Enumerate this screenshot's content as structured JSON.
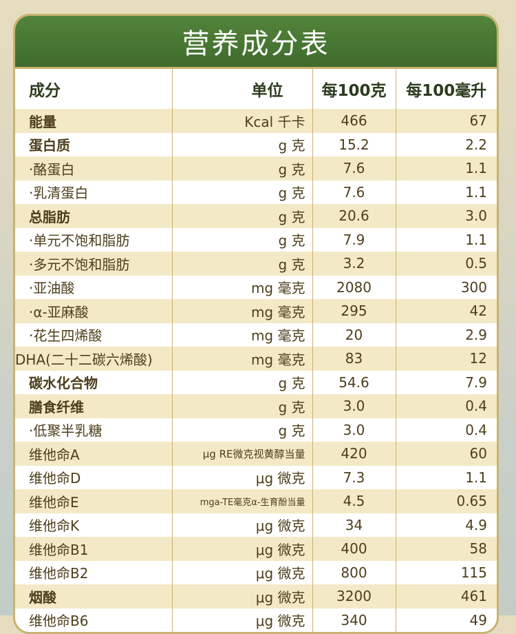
{
  "title": "营养成分表",
  "columns": [
    "成分",
    "单位",
    "每100克",
    "每100毫升"
  ],
  "rows": [
    {
      "name": "能量",
      "unit": "Kcal 千卡",
      "per100g": "466",
      "per100ml": "67"
    },
    {
      "name": "蛋白质",
      "unit": "g 克",
      "per100g": "15.2",
      "per100ml": "2.2"
    },
    {
      "name": "·酪蛋白",
      "unit": "g 克",
      "per100g": "7.6",
      "per100ml": "1.1"
    },
    {
      "name": "·乳清蛋白",
      "unit": "g 克",
      "per100g": "7.6",
      "per100ml": "1.1"
    },
    {
      "name": "总脂肪",
      "unit": "g 克",
      "per100g": "20.6",
      "per100ml": "3.0"
    },
    {
      "name": "·单元不饱和脂肪",
      "unit": "g 克",
      "per100g": "7.9",
      "per100ml": "1.1"
    },
    {
      "name": "·多元不饱和脂肪",
      "unit": "g 克",
      "per100g": "3.2",
      "per100ml": "0.5"
    },
    {
      "name": " ·亚油酸",
      "unit": "mg 毫克",
      "per100g": "2080",
      "per100ml": "300"
    },
    {
      "name": " ·α-亚麻酸",
      "unit": "mg 毫克",
      "per100g": "295",
      "per100ml": "42"
    },
    {
      "name": " ·花生四烯酸",
      "unit": "mg 毫克",
      "per100g": "20",
      "per100ml": "2.9"
    },
    {
      "name": "DHA(二十二碳六烯酸)",
      "unit": "mg 毫克",
      "per100g": "83",
      "per100ml": "12"
    },
    {
      "name": "碳水化合物",
      "unit": "g 克",
      "per100g": "54.6",
      "per100ml": "7.9"
    },
    {
      "name": "膳食纤维",
      "unit": "g 克",
      "per100g": "3.0",
      "per100ml": "0.4"
    },
    {
      "name": "·低聚半乳糖",
      "unit": "g 克",
      "per100g": "3.0",
      "per100ml": "0.4"
    },
    {
      "name": "维他命A",
      "unit": "μg RE微克视黄醇当量",
      "per100g": "420",
      "per100ml": "60"
    },
    {
      "name": "维他命D",
      "unit": "μg 微克",
      "per100g": "7.3",
      "per100ml": "1.1"
    },
    {
      "name": "维他命E",
      "unit": "mga-TE毫克α-生育酚当量",
      "per100g": "4.5",
      "per100ml": "0.65"
    },
    {
      "name": "维他命K",
      "unit": "μg 微克",
      "per100g": "34",
      "per100ml": "4.9"
    },
    {
      "name": "维他命B1",
      "unit": "μg 微克",
      "per100g": "400",
      "per100ml": "58"
    },
    {
      "name": "维他命B2",
      "unit": "μg 微克",
      "per100g": "800",
      "per100ml": "115"
    },
    {
      "name": "烟酸",
      "unit": "μg 微克",
      "per100g": "3200",
      "per100ml": "461"
    },
    {
      "name": "维他命B6",
      "unit": "μg 微克",
      "per100g": "340",
      "per100ml": "49"
    }
  ]
}
